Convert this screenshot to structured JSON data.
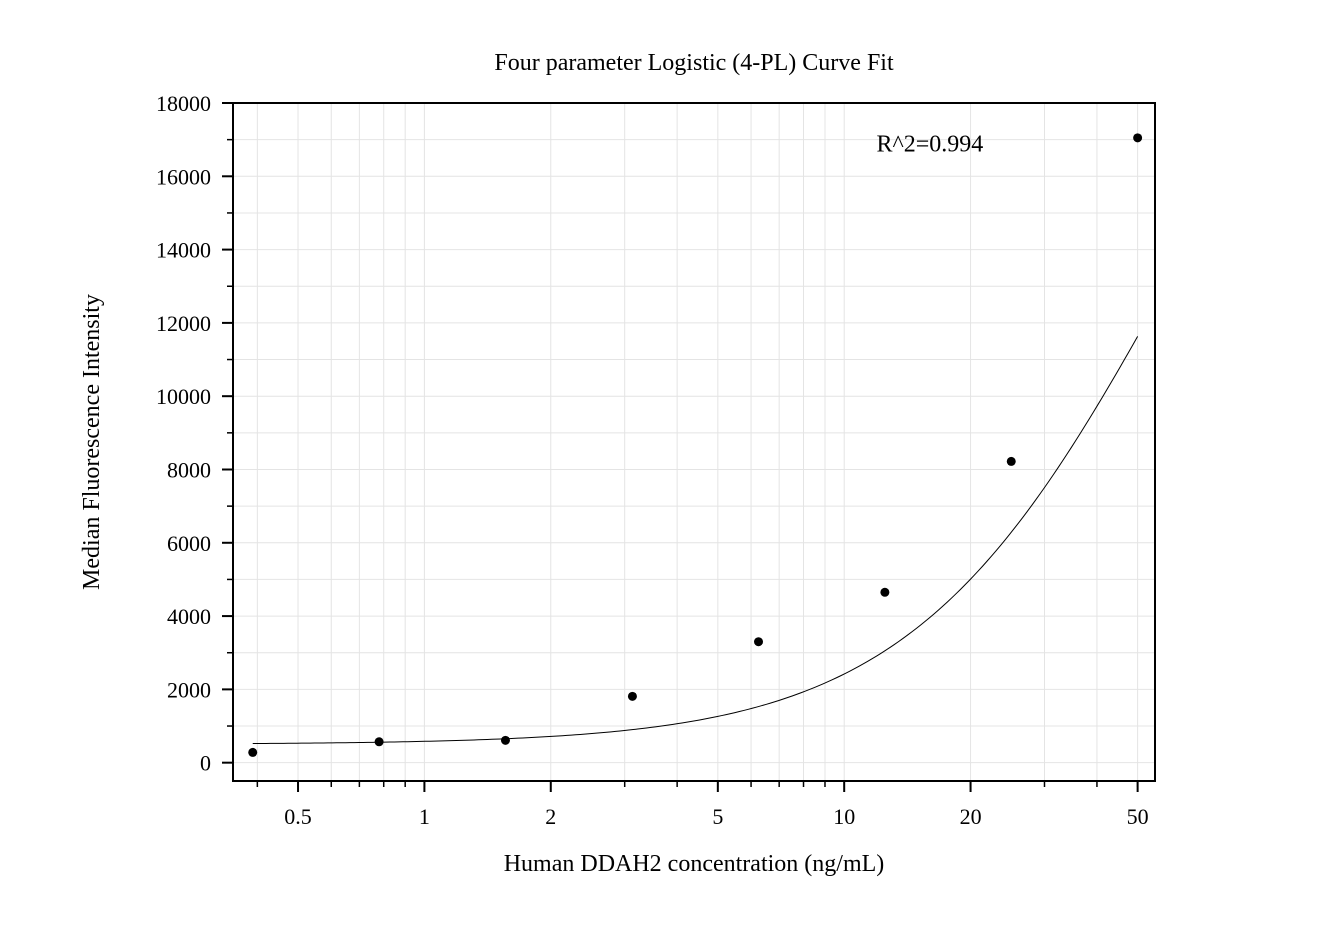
{
  "chart_data": {
    "type": "scatter",
    "title": "Four parameter Logistic (4-PL) Curve Fit",
    "xlabel": "Human DDAH2 concentration (ng/mL)",
    "ylabel": "Median Fluorescence Intensity",
    "x_scale": "log",
    "xlim": [
      0.35,
      55
    ],
    "ylim": [
      -500,
      18000
    ],
    "x_ticks": [
      0.5,
      1,
      2,
      5,
      10,
      20,
      50
    ],
    "x_tick_labels": [
      "0.5",
      "1",
      "2",
      "5",
      "10",
      "20",
      "50"
    ],
    "y_ticks": [
      0,
      2000,
      4000,
      6000,
      8000,
      10000,
      12000,
      14000,
      16000,
      18000
    ],
    "y_tick_labels": [
      "0",
      "2000",
      "4000",
      "6000",
      "8000",
      "10000",
      "12000",
      "14000",
      "16000",
      "18000"
    ],
    "grid": true,
    "series": [
      {
        "kind": "points",
        "x": [
          0.39,
          0.78,
          1.56,
          3.13,
          6.25,
          12.5,
          25,
          50
        ],
        "y": [
          280,
          570,
          610,
          1810,
          3300,
          4650,
          8220,
          17050
        ]
      },
      {
        "kind": "fit",
        "model": "4PL",
        "parameters": {
          "A": 500,
          "B": 1.4,
          "C": 60,
          "D": 26000
        },
        "x_range": [
          0.39,
          50
        ]
      }
    ],
    "annotations": [
      {
        "text": "R^2=0.994",
        "x": 16,
        "y": 16900
      }
    ]
  }
}
